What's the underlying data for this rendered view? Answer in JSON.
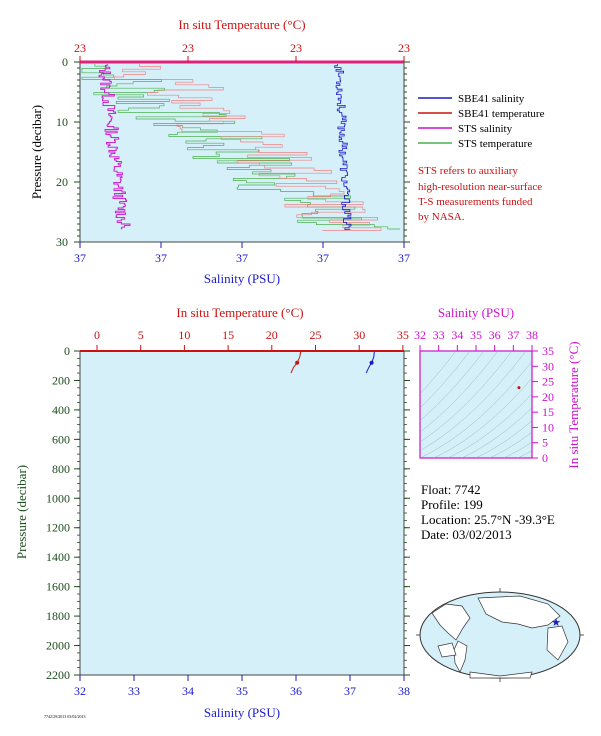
{
  "colors": {
    "panel_bg": "#d6f0fa",
    "salinity": "#1a1ac8",
    "temperature": "#cc1111",
    "sts_salinity": "#cc11cc",
    "sts_temperature": "#4caf50",
    "pressure_axis": "#1e4d1e"
  },
  "top_panel": {
    "x_top_label": "In situ Temperature (°C)",
    "x_bottom_label": "Salinity (PSU)",
    "y_label": "Pressure (decibar)",
    "top_ticks": [
      "23",
      "23",
      "23",
      "23"
    ],
    "bottom_ticks": [
      "37",
      "37",
      "37",
      "37",
      "37"
    ],
    "y_ticks": [
      "0",
      "10",
      "20",
      "30"
    ]
  },
  "legend": {
    "items": [
      {
        "label": "SBE41 salinity",
        "color": "#1a1ac8"
      },
      {
        "label": "SBE41 temperature",
        "color": "#cc1111"
      },
      {
        "label": "STS salinity",
        "color": "#cc11cc"
      },
      {
        "label": "STS temperature",
        "color": "#4caf50"
      }
    ],
    "note_lines": [
      "STS refers to auxiliary",
      "high-resolution near-surface",
      "T-S measurements funded",
      "by NASA."
    ]
  },
  "bottom_panel": {
    "x_top_label": "In situ Temperature (°C)",
    "x_bottom_label": "Salinity (PSU)",
    "y_label": "Pressure (decibar)",
    "top_ticks": [
      "0",
      "5",
      "10",
      "15",
      "20",
      "25",
      "30",
      "35"
    ],
    "bottom_ticks": [
      "32",
      "33",
      "34",
      "35",
      "36",
      "37",
      "38"
    ],
    "y_ticks": [
      "0",
      "200",
      "400",
      "600",
      "800",
      "1000",
      "1200",
      "1400",
      "1600",
      "1800",
      "2000",
      "2200"
    ]
  },
  "ts_panel": {
    "x_label": "Salinity (PSU)",
    "y_label": "In situ Temperature (°C)",
    "x_ticks": [
      "32",
      "33",
      "34",
      "35",
      "36",
      "37",
      "38"
    ],
    "y_ticks": [
      "0",
      "5",
      "10",
      "15",
      "20",
      "25",
      "30",
      "35"
    ]
  },
  "float_info": {
    "float": "Float:  7742",
    "profile": "Profile:  199",
    "location": "Location:  25.7°N  -39.3°E",
    "date": "Date:  03/02/2013"
  },
  "footer_code": "7742/29/2013 03/02/2013",
  "chart_data": [
    {
      "type": "line",
      "panel": "top",
      "y_axis": "pressure (decibar)",
      "ylim": [
        30,
        0
      ],
      "series": [
        {
          "name": "SBE41 salinity",
          "x": [
            37.32,
            37.33,
            37.32,
            37.34,
            37.33,
            37.35,
            37.34,
            37.36,
            37.37
          ],
          "y": [
            3,
            6,
            9,
            12,
            15,
            18,
            21,
            24,
            27
          ]
        },
        {
          "name": "SBE41 temperature",
          "x": [
            23.05,
            23.08,
            23.1,
            23.2,
            23.3,
            23.35,
            23.4,
            23.45,
            23.5
          ],
          "y": [
            2,
            5,
            8,
            11,
            14,
            17,
            20,
            23,
            27
          ]
        },
        {
          "name": "STS salinity",
          "x": [
            36.75,
            36.76,
            36.74,
            36.77,
            36.76,
            36.78,
            36.79,
            36.8,
            36.81
          ],
          "y": [
            1,
            4,
            8,
            12,
            16,
            19,
            22,
            25,
            28
          ]
        },
        {
          "name": "STS temperature",
          "x": [
            23.0,
            23.05,
            23.1,
            23.2,
            23.3,
            23.35,
            23.4,
            23.5,
            23.55
          ],
          "y": [
            1,
            4,
            7,
            10,
            14,
            17,
            20,
            24,
            28
          ]
        }
      ]
    },
    {
      "type": "line",
      "panel": "bottom",
      "xlim_salinity": [
        32,
        38
      ],
      "xlim_temperature": [
        0,
        35
      ],
      "ylim": [
        2200,
        0
      ],
      "series": [
        {
          "name": "SBE41 salinity",
          "x": [
            37.45,
            37.44,
            37.4,
            37.35,
            37.3
          ],
          "y": [
            5,
            40,
            80,
            110,
            150
          ]
        },
        {
          "name": "SBE41 temperature",
          "x": [
            23.3,
            23.2,
            22.9,
            22.5,
            22.2
          ],
          "y": [
            5,
            40,
            80,
            110,
            150
          ]
        }
      ]
    },
    {
      "type": "scatter",
      "panel": "T-S diagram",
      "xlim": [
        32,
        38
      ],
      "ylim": [
        0,
        35
      ],
      "points": [
        {
          "x": 37.3,
          "y": 23.0
        }
      ]
    }
  ]
}
